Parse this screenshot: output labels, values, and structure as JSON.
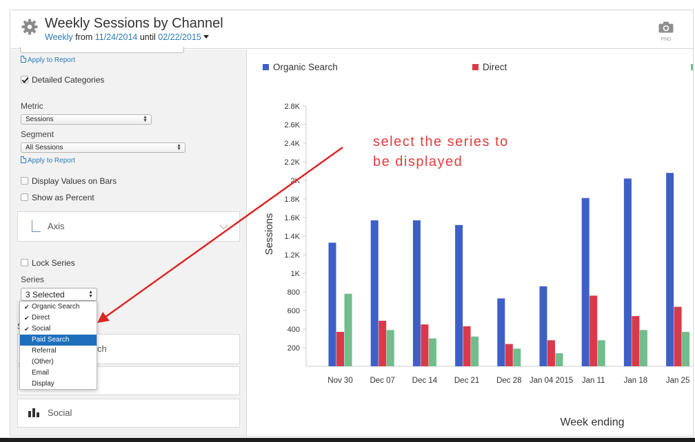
{
  "header": {
    "title": "Weekly Sessions by Channel",
    "period": "Weekly",
    "from_word": "from",
    "start_date": "11/24/2014",
    "until_word": "until",
    "end_date": "02/22/2015",
    "export_label": "PNG",
    "icons": {
      "settings": "gear-icon",
      "export": "camera-icon"
    }
  },
  "panel": {
    "apply_link_1": "Apply to Report",
    "detailed_categories": {
      "label": "Detailed Categories",
      "checked": true
    },
    "metric": {
      "label": "Metric",
      "value": "Sessions"
    },
    "segment": {
      "label": "Segment",
      "value": "All Sessions"
    },
    "apply_link_2": "Apply to Report",
    "display_values": {
      "label": "Display Values on Bars",
      "checked": false
    },
    "show_percent": {
      "label": "Show as Percent",
      "checked": false
    },
    "axis_section": "Axis",
    "lock_series": {
      "label": "Lock Series",
      "checked": false
    },
    "series": {
      "label": "Series",
      "selected_text": "3 Selected",
      "options": [
        {
          "label": "Organic Search",
          "checked": true,
          "highlighted": false
        },
        {
          "label": "Direct",
          "checked": true,
          "highlighted": false
        },
        {
          "label": "Social",
          "checked": true,
          "highlighted": false
        },
        {
          "label": "Paid Search",
          "checked": false,
          "highlighted": true
        },
        {
          "label": "Referral",
          "checked": false,
          "highlighted": false
        },
        {
          "label": "(Other)",
          "checked": false,
          "highlighted": false
        },
        {
          "label": "Email",
          "checked": false,
          "highlighted": false
        },
        {
          "label": "Display",
          "checked": false,
          "highlighted": false
        }
      ]
    },
    "hidden_section_label_fragment": "S",
    "section_partial_text": "ch",
    "social_section": "Social"
  },
  "annotation": {
    "line1": "select the series to",
    "line2": "be displayed"
  },
  "chart_data": {
    "type": "bar",
    "xlabel": "Week ending",
    "ylabel": "Sessions",
    "ylim": [
      0,
      2800
    ],
    "yticks": [
      "200",
      "400",
      "600",
      "800",
      "1K",
      "1.2K",
      "1.4K",
      "1.6K",
      "1.8K",
      "2K",
      "2.2K",
      "2.4K",
      "2.6K",
      "2.8K"
    ],
    "categories": [
      "Nov 30",
      "Dec 07",
      "Dec 14",
      "Dec 21",
      "Dec 28",
      "Jan 04 2015",
      "Jan 11",
      "Jan 18",
      "Jan 25"
    ],
    "series": [
      {
        "name": "Organic Search",
        "color": "#3e5fc6",
        "values": [
          1330,
          1570,
          1570,
          1520,
          730,
          860,
          1810,
          2020,
          2080
        ]
      },
      {
        "name": "Direct",
        "color": "#d93a4a",
        "values": [
          370,
          490,
          450,
          430,
          240,
          280,
          760,
          540,
          640
        ]
      },
      {
        "name": "",
        "color": "#71bd8c",
        "values": [
          780,
          390,
          300,
          320,
          190,
          140,
          280,
          390,
          370
        ]
      }
    ],
    "legend_position": "top"
  }
}
